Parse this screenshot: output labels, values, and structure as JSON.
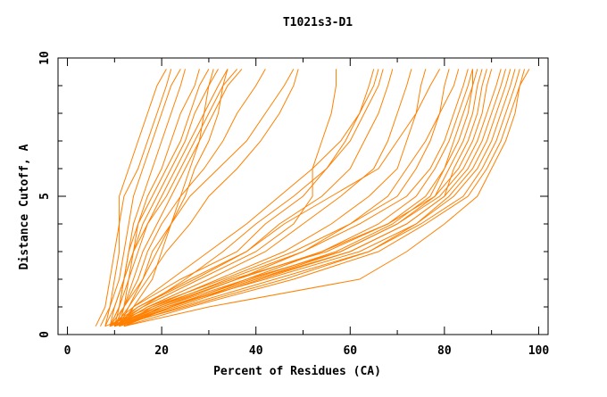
{
  "chart_data": {
    "type": "line",
    "title": "T1021s3-D1",
    "xlabel": "Percent of Residues (CA)",
    "ylabel": "Distance Cutoff, A",
    "xlim": [
      -2,
      102
    ],
    "ylim": [
      0,
      10
    ],
    "xticks": [
      0,
      20,
      40,
      60,
      80,
      100
    ],
    "yticks": [
      0,
      5,
      10
    ],
    "grid": false,
    "line_color": "#ff8000",
    "y": [
      0.3,
      1,
      2,
      3,
      4,
      5,
      6,
      7,
      8,
      9,
      9.6
    ],
    "series": [
      {
        "x": [
          8,
          9,
          10,
          11,
          11,
          11,
          13,
          15,
          17,
          19,
          21
        ]
      },
      {
        "x": [
          6,
          8,
          9,
          10,
          11,
          12,
          15,
          17,
          19,
          21,
          22
        ]
      },
      {
        "x": [
          7,
          9,
          11,
          12,
          13,
          14,
          16,
          18,
          20,
          22,
          24
        ]
      },
      {
        "x": [
          9,
          10,
          12,
          13,
          14,
          16,
          18,
          20,
          22,
          24,
          25
        ]
      },
      {
        "x": [
          8,
          10,
          12,
          14,
          15,
          17,
          20,
          22,
          24,
          27,
          28
        ]
      },
      {
        "x": [
          10,
          11,
          12,
          13,
          15,
          18,
          21,
          24,
          26,
          28,
          30
        ]
      },
      {
        "x": [
          9,
          11,
          13,
          14,
          16,
          19,
          22,
          25,
          27,
          30,
          32
        ]
      },
      {
        "x": [
          10,
          12,
          13,
          15,
          17,
          20,
          23,
          26,
          29,
          32,
          34
        ]
      },
      {
        "x": [
          9,
          11,
          12,
          14,
          17,
          21,
          24,
          27,
          30,
          33,
          36
        ]
      },
      {
        "x": [
          10,
          12,
          14,
          16,
          19,
          22,
          25,
          28,
          31,
          34,
          37
        ]
      },
      {
        "x": [
          11,
          12,
          15,
          17,
          20,
          24,
          29,
          33,
          36,
          40,
          42
        ]
      },
      {
        "x": [
          9,
          12,
          16,
          18,
          22,
          26,
          32,
          38,
          42,
          46,
          48
        ]
      },
      {
        "x": [
          10,
          13,
          17,
          21,
          26,
          30,
          36,
          41,
          45,
          48,
          49
        ]
      },
      {
        "x": [
          12,
          14,
          18,
          20,
          22,
          25,
          27,
          30,
          32,
          33,
          34
        ]
      },
      {
        "x": [
          11,
          13,
          16,
          19,
          22,
          24,
          26,
          28,
          29,
          30,
          31
        ]
      },
      {
        "x": [
          9,
          14,
          24,
          36,
          42,
          50,
          55,
          59,
          62,
          65,
          66
        ]
      },
      {
        "x": [
          10,
          15,
          26,
          38,
          45,
          54,
          60,
          63,
          66,
          68,
          69
        ]
      },
      {
        "x": [
          9,
          16,
          28,
          40,
          48,
          52,
          52,
          54,
          56,
          57,
          57
        ]
      },
      {
        "x": [
          10,
          17,
          30,
          42,
          50,
          58,
          65,
          68,
          70,
          72,
          73
        ]
      },
      {
        "x": [
          11,
          18,
          32,
          46,
          56,
          64,
          70,
          72,
          74,
          75,
          76
        ]
      },
      {
        "x": [
          9,
          15,
          27,
          38,
          46,
          56,
          66,
          70,
          74,
          77,
          79
        ]
      },
      {
        "x": [
          10,
          17,
          33,
          48,
          60,
          70,
          74,
          77,
          79,
          80,
          81
        ]
      },
      {
        "x": [
          12,
          20,
          36,
          50,
          60,
          68,
          72,
          76,
          79,
          82,
          83
        ]
      },
      {
        "x": [
          10,
          16,
          25,
          33,
          40,
          48,
          55,
          60,
          63,
          66,
          67
        ]
      },
      {
        "x": [
          11,
          14,
          22,
          30,
          38,
          45,
          52,
          58,
          62,
          64,
          65
        ]
      },
      {
        "x": [
          12,
          22,
          38,
          54,
          66,
          74,
          78,
          81,
          83,
          85,
          86
        ]
      },
      {
        "x": [
          10,
          19,
          34,
          50,
          62,
          72,
          77,
          80,
          82,
          84,
          85
        ]
      },
      {
        "x": [
          8,
          18,
          35,
          55,
          68,
          78,
          83,
          86,
          88,
          89,
          90
        ]
      },
      {
        "x": [
          9,
          20,
          38,
          58,
          70,
          79,
          84,
          87,
          89,
          91,
          92
        ]
      },
      {
        "x": [
          10,
          22,
          40,
          60,
          72,
          80,
          85,
          88,
          90,
          92,
          93
        ]
      },
      {
        "x": [
          9,
          21,
          42,
          62,
          74,
          81,
          86,
          89,
          91,
          93,
          94
        ]
      },
      {
        "x": [
          11,
          24,
          44,
          64,
          74,
          82,
          87,
          90,
          92,
          94,
          95
        ]
      },
      {
        "x": [
          10,
          25,
          46,
          64,
          75,
          84,
          88,
          91,
          93,
          95,
          96
        ]
      },
      {
        "x": [
          12,
          30,
          62,
          72,
          80,
          87,
          90,
          93,
          95,
          96,
          97
        ]
      },
      {
        "x": [
          10,
          23,
          41,
          60,
          72,
          80,
          82,
          85,
          87,
          88,
          89
        ]
      },
      {
        "x": [
          11,
          22,
          40,
          58,
          70,
          78,
          81,
          84,
          86,
          87,
          88
        ]
      },
      {
        "x": [
          9,
          19,
          36,
          54,
          68,
          76,
          80,
          82,
          84,
          86,
          87
        ]
      },
      {
        "x": [
          12,
          26,
          48,
          66,
          76,
          85,
          89,
          92,
          94,
          96,
          98
        ]
      },
      {
        "x": [
          10,
          21,
          39,
          57,
          69,
          77,
          80,
          83,
          85,
          86,
          86
        ]
      }
    ]
  }
}
